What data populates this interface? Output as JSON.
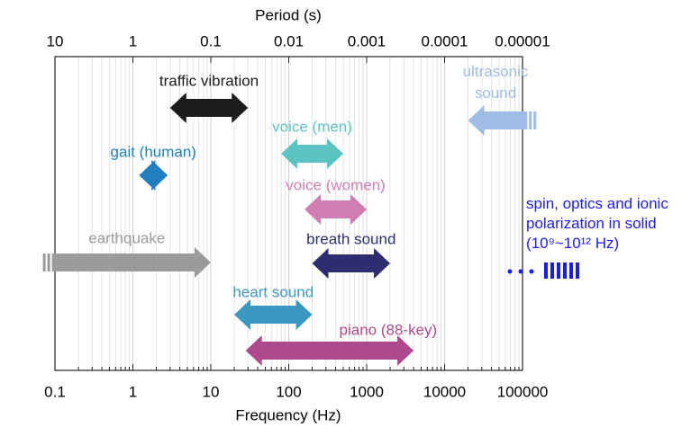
{
  "chart_data": {
    "type": "range",
    "xlabel": "Frequency (Hz)",
    "x2label": "Period (s)",
    "xscale": "log",
    "xlim": [
      0.1,
      100000
    ],
    "xticks": [
      0.1,
      1,
      10,
      100,
      1000,
      10000,
      100000
    ],
    "x2ticks": [
      10,
      1,
      0.1,
      0.01,
      0.001,
      0.0001,
      1e-05
    ],
    "xminorticks": [
      0.2,
      0.3,
      0.4,
      0.5,
      0.6,
      0.7,
      0.8,
      0.9,
      2,
      3,
      4,
      5,
      6,
      7,
      8,
      9,
      20,
      30,
      40,
      50,
      60,
      70,
      80,
      90,
      200,
      300,
      400,
      500,
      600,
      700,
      800,
      900,
      2000,
      3000,
      4000,
      5000,
      6000,
      7000,
      8000,
      9000,
      20000,
      30000,
      40000,
      50000,
      60000,
      70000,
      80000,
      90000
    ],
    "grid": true,
    "series": [
      {
        "name": "traffic vibration",
        "color": "#1c1c1c",
        "values": [
          3,
          30
        ],
        "heads": "both"
      },
      {
        "name": "voice (men)",
        "color": "#5cc3c3",
        "values": [
          80,
          500
        ],
        "heads": "both"
      },
      {
        "name": "gait (human)",
        "color": "#1f7fbf",
        "values": [
          1.2,
          2.8
        ],
        "heads": "both"
      },
      {
        "name": "voice (women)",
        "color": "#d07db3",
        "values": [
          160,
          1000
        ],
        "heads": "both"
      },
      {
        "name": "earthquake",
        "color": "#9b9b9b",
        "values": [
          0.07,
          10
        ],
        "heads": "high",
        "extends": "low"
      },
      {
        "name": "breath sound",
        "color": "#2e2d6f",
        "values": [
          200,
          2000
        ],
        "heads": "both"
      },
      {
        "name": "heart sound",
        "color": "#3b98c0",
        "values": [
          20,
          200
        ],
        "heads": "both"
      },
      {
        "name": "piano (88-key)",
        "color": "#ae4a8b",
        "values": [
          28,
          4000
        ],
        "heads": "both"
      },
      {
        "name": "ultrasonic sound",
        "color": "#9dbde6",
        "values": [
          20000,
          150000
        ],
        "heads": "low",
        "extends": "high"
      }
    ],
    "annotation": {
      "text": "spin, optics and ionic polarization in solid (10⁹~10¹² Hz)",
      "color": "#1a1aff"
    }
  }
}
